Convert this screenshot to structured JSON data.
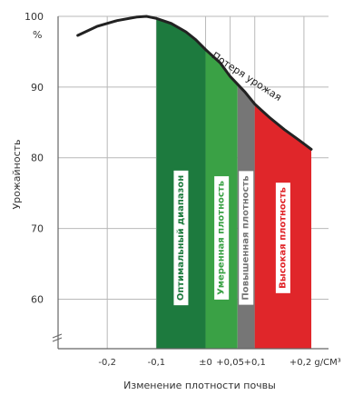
{
  "chart_data": {
    "type": "area",
    "title": "",
    "xlabel": "Изменение плотности почвы",
    "ylabel": "Урожайность",
    "y_unit": "%",
    "xlim": [
      -0.3,
      0.25
    ],
    "ylim": [
      53,
      100
    ],
    "grid": true,
    "x_ticks": [
      {
        "value": -0.2,
        "label": "-0,2"
      },
      {
        "value": -0.1,
        "label": "-0,1"
      },
      {
        "value": 0,
        "label": "±0"
      },
      {
        "value": 0.05,
        "label": "+0,05"
      },
      {
        "value": 0.1,
        "label": "+0,1"
      },
      {
        "value": 0.2,
        "label": "+0,2 g/CM³"
      }
    ],
    "y_ticks": [
      {
        "value": 100,
        "label": "100"
      },
      {
        "value": 90,
        "label": "90"
      },
      {
        "value": 80,
        "label": "80"
      },
      {
        "value": 70,
        "label": "70"
      },
      {
        "value": 60,
        "label": "60"
      }
    ],
    "curve": {
      "x": [
        -0.26,
        -0.22,
        -0.18,
        -0.14,
        -0.12,
        -0.1,
        -0.07,
        -0.04,
        -0.02,
        0.0,
        0.03,
        0.05,
        0.08,
        0.1,
        0.13,
        0.16,
        0.19,
        0.215
      ],
      "y": [
        97.3,
        98.6,
        99.4,
        99.9,
        100.0,
        99.7,
        99.0,
        97.8,
        96.7,
        95.3,
        93.4,
        91.5,
        89.3,
        87.6,
        85.7,
        84.0,
        82.5,
        81.2
      ]
    },
    "curve_label": "Потеря урожая",
    "zones": [
      {
        "from": -0.1,
        "to": 0.0,
        "label": "Оптимальный диапазон",
        "color": "#1d7a3e"
      },
      {
        "from": 0.0,
        "to": 0.065,
        "label": "Умеренная плотность",
        "color": "#3aa145"
      },
      {
        "from": 0.065,
        "to": 0.1,
        "label": "Повышенная плотность",
        "color": "#767676"
      },
      {
        "from": 0.1,
        "to": 0.215,
        "label": "Высокая плотность",
        "color": "#e0262a"
      }
    ]
  }
}
